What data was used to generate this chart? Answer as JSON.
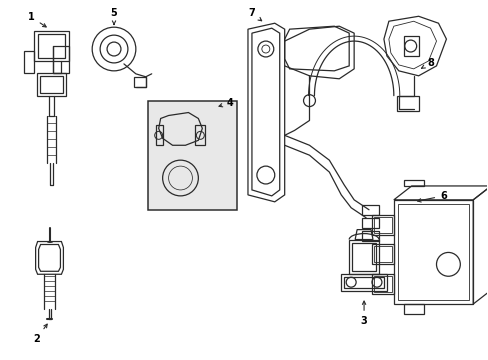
{
  "background_color": "#ffffff",
  "line_color": "#2a2a2a",
  "fig_width": 4.89,
  "fig_height": 3.6,
  "dpi": 100,
  "border_color": "#cccccc",
  "gray_fill": "#e8e8e8"
}
